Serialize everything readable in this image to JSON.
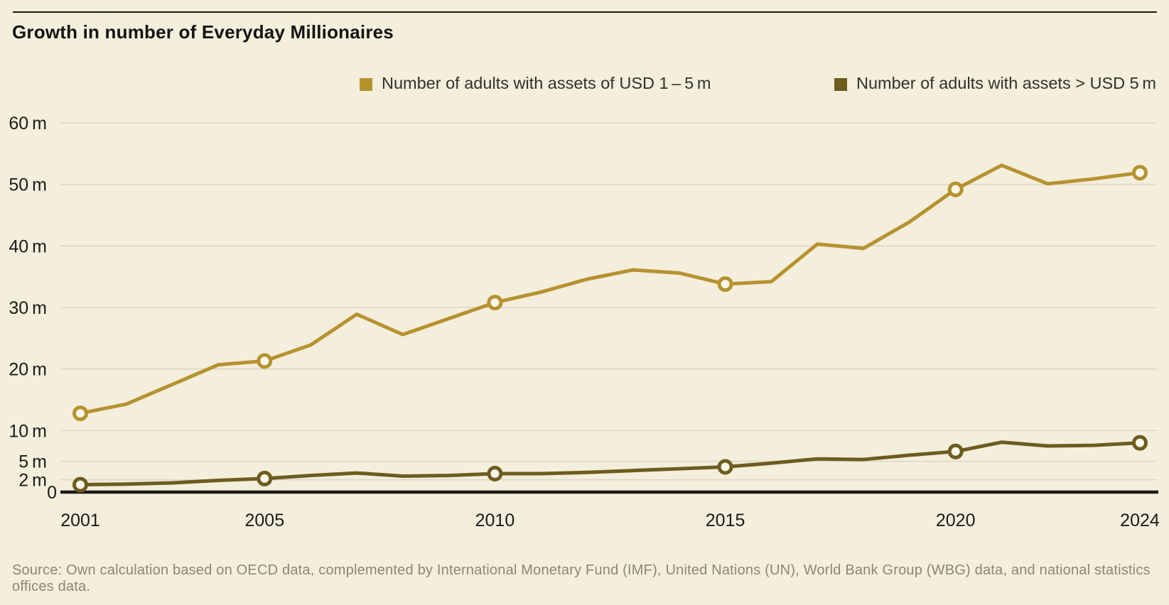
{
  "title": "Growth in number of Everyday Millionaires",
  "source": "Source: Own calculation based on OECD data, complemented by International Monetary Fund (IMF), United Nations (UN), World Bank Group (WBG) data, and national statistics offices data.",
  "colors": {
    "background": "#f4eedc",
    "grid": "#dbd5c6",
    "axis": "#1a1914",
    "tick_text": "#1c1b17",
    "marker_fill": "#fcf8ed",
    "series1": "#b6922f",
    "series2": "#6d5c1e"
  },
  "chart_data": {
    "type": "line",
    "title": "Growth in number of Everyday Millionaires",
    "xlabel": "",
    "ylabel": "",
    "x": [
      2001,
      2002,
      2003,
      2004,
      2005,
      2006,
      2007,
      2008,
      2009,
      2010,
      2011,
      2012,
      2013,
      2014,
      2015,
      2016,
      2017,
      2018,
      2019,
      2020,
      2021,
      2022,
      2023,
      2024
    ],
    "xticks": [
      2001,
      2005,
      2010,
      2015,
      2020,
      2024
    ],
    "marker_years": [
      2001,
      2005,
      2010,
      2015,
      2020,
      2024
    ],
    "yticks": [
      {
        "value": 60,
        "label": "60 m"
      },
      {
        "value": 50,
        "label": "50 m"
      },
      {
        "value": 40,
        "label": "40 m"
      },
      {
        "value": 30,
        "label": "30 m"
      },
      {
        "value": 20,
        "label": "20 m"
      },
      {
        "value": 10,
        "label": "10 m"
      },
      {
        "value": 5,
        "label": "5 m"
      },
      {
        "value": 2,
        "label": "2 m"
      },
      {
        "value": 0,
        "label": "0"
      }
    ],
    "ylim": [
      0,
      63
    ],
    "grid": true,
    "legend_position": "top",
    "series": [
      {
        "name": "Number of adults with assets of USD 1 – 5 m",
        "color": "#b6922f",
        "values": [
          12.8,
          14.3,
          17.5,
          20.7,
          21.3,
          23.9,
          28.9,
          25.6,
          28.2,
          30.8,
          32.5,
          34.6,
          36.1,
          35.6,
          33.8,
          34.2,
          40.3,
          39.6,
          43.9,
          49.2,
          53.1,
          50.1,
          50.9,
          51.9
        ]
      },
      {
        "name": "Number of adults with assets > USD 5 m",
        "color": "#6d5c1e",
        "values": [
          1.2,
          1.3,
          1.5,
          1.9,
          2.2,
          2.7,
          3.1,
          2.6,
          2.7,
          3.0,
          3.0,
          3.2,
          3.5,
          3.8,
          4.1,
          4.7,
          5.4,
          5.3,
          6.0,
          6.6,
          8.1,
          7.5,
          7.6,
          8.0
        ]
      }
    ]
  }
}
